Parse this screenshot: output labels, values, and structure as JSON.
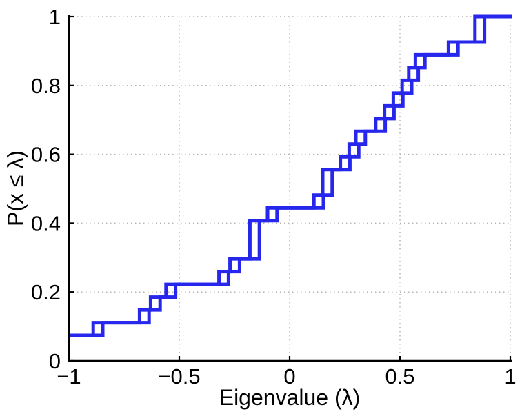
{
  "figure": {
    "background_color": "#ffffff",
    "title": ""
  },
  "chart_data": {
    "type": "step",
    "subtype": "empirical-cdf",
    "title": "",
    "xlabel": "Eigenvalue (λ)",
    "ylabel": "P(x ≤ λ)",
    "xlim": [
      -1,
      1
    ],
    "ylim": [
      0,
      1
    ],
    "xticks": [
      {
        "value": -1,
        "label": "−1"
      },
      {
        "value": -0.5,
        "label": "−0.5"
      },
      {
        "value": 0,
        "label": "0"
      },
      {
        "value": 0.5,
        "label": "0.5"
      },
      {
        "value": 1,
        "label": "1"
      }
    ],
    "yticks": [
      {
        "value": 0,
        "label": "0"
      },
      {
        "value": 0.2,
        "label": "0.2"
      },
      {
        "value": 0.4,
        "label": "0.4"
      },
      {
        "value": 0.6,
        "label": "0.6"
      },
      {
        "value": 0.8,
        "label": "0.8"
      },
      {
        "value": 1,
        "label": "1"
      }
    ],
    "grid": "dotted",
    "legend": "none",
    "n_points": 27,
    "eigenvalues": [
      -1,
      -1,
      -0.89,
      -0.68,
      -0.63,
      -0.56,
      -0.32,
      -0.27,
      -0.18,
      -0.18,
      -0.18,
      -0.1,
      0.11,
      0.15,
      0.15,
      0.23,
      0.27,
      0.3,
      0.39,
      0.43,
      0.47,
      0.51,
      0.54,
      0.57,
      0.72,
      0.84,
      0.84
    ],
    "steps": [
      {
        "x": -1.0,
        "p": 0.0741
      },
      {
        "x": -0.89,
        "p": 0.1111
      },
      {
        "x": -0.68,
        "p": 0.1481
      },
      {
        "x": -0.63,
        "p": 0.1852
      },
      {
        "x": -0.56,
        "p": 0.2222
      },
      {
        "x": -0.32,
        "p": 0.2593
      },
      {
        "x": -0.27,
        "p": 0.2963
      },
      {
        "x": -0.18,
        "p": 0.4074
      },
      {
        "x": -0.1,
        "p": 0.4444
      },
      {
        "x": 0.11,
        "p": 0.4815
      },
      {
        "x": 0.15,
        "p": 0.5556
      },
      {
        "x": 0.23,
        "p": 0.5926
      },
      {
        "x": 0.27,
        "p": 0.6296
      },
      {
        "x": 0.3,
        "p": 0.6667
      },
      {
        "x": 0.39,
        "p": 0.7037
      },
      {
        "x": 0.43,
        "p": 0.7407
      },
      {
        "x": 0.47,
        "p": 0.7778
      },
      {
        "x": 0.51,
        "p": 0.8148
      },
      {
        "x": 0.54,
        "p": 0.8519
      },
      {
        "x": 0.57,
        "p": 0.8889
      },
      {
        "x": 0.72,
        "p": 0.9259
      },
      {
        "x": 0.84,
        "p": 1.0
      }
    ],
    "double_line_x_offset": 0.043,
    "line_color": "#2626ec",
    "line_width": 5,
    "grid_color": "#b4b4b4",
    "axis_color": "#000000",
    "tick_font_size": 31,
    "label_font_size": 32
  }
}
